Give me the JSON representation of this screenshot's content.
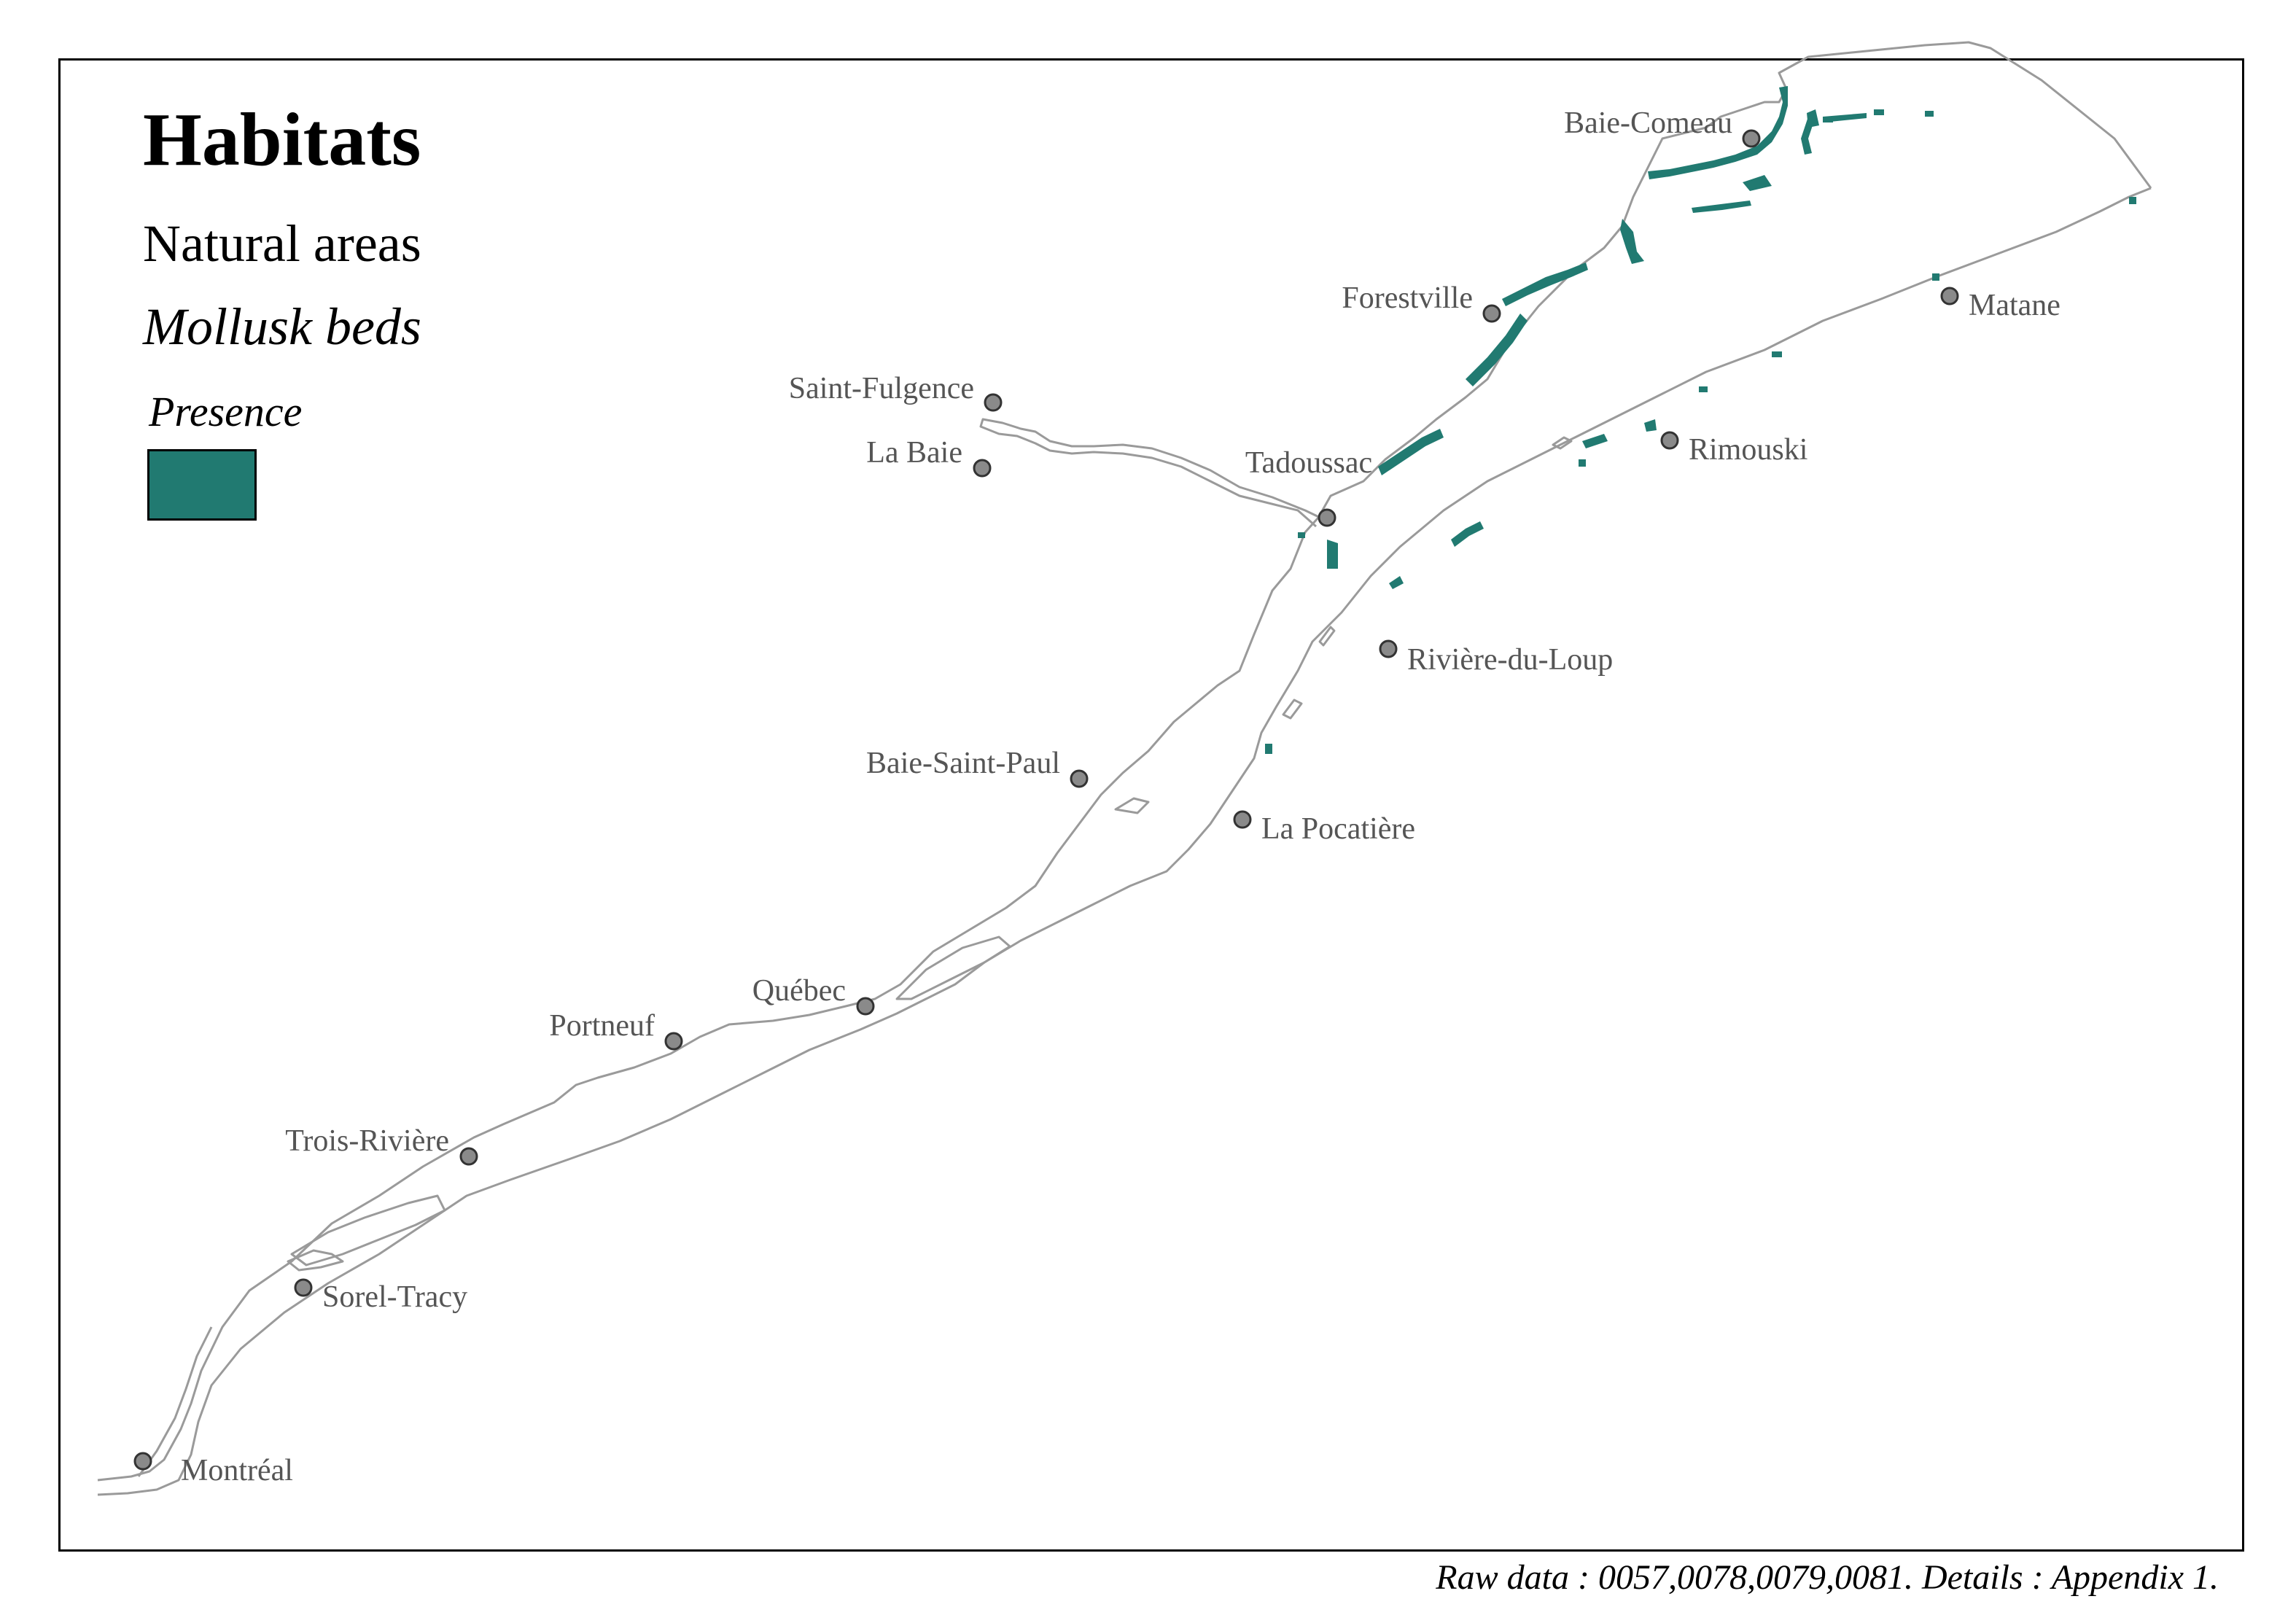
{
  "legend": {
    "title": "Habitats",
    "category": "Natural areas",
    "layer": "Mollusk beds",
    "key_title": "Presence",
    "swatch_color": "#217a71"
  },
  "caption": "Raw data : 0057,0078,0079,0081. Details : Appendix 1.",
  "colors": {
    "shoreline": "#9a9a9a",
    "mollusk": "#217a71",
    "city_fill": "#8a8a8a",
    "label": "#555555"
  },
  "cities": [
    {
      "id": "baie-comeau",
      "name": "Baie-Comeau"
    },
    {
      "id": "forestville",
      "name": "Forestville"
    },
    {
      "id": "matane",
      "name": "Matane"
    },
    {
      "id": "saint-fulgence",
      "name": "Saint-Fulgence"
    },
    {
      "id": "la-baie",
      "name": "La Baie"
    },
    {
      "id": "tadoussac",
      "name": "Tadoussac"
    },
    {
      "id": "rimouski",
      "name": "Rimouski"
    },
    {
      "id": "riviere-du-loup",
      "name": "Rivière-du-Loup"
    },
    {
      "id": "baie-saint-paul",
      "name": "Baie-Saint-Paul"
    },
    {
      "id": "la-pocatiere",
      "name": "La Pocatière"
    },
    {
      "id": "quebec",
      "name": "Québec"
    },
    {
      "id": "portneuf",
      "name": "Portneuf"
    },
    {
      "id": "trois-riviere",
      "name": "Trois-Rivière"
    },
    {
      "id": "sorel-tracy",
      "name": "Sorel-Tracy"
    },
    {
      "id": "montreal",
      "name": "Montréal"
    }
  ]
}
